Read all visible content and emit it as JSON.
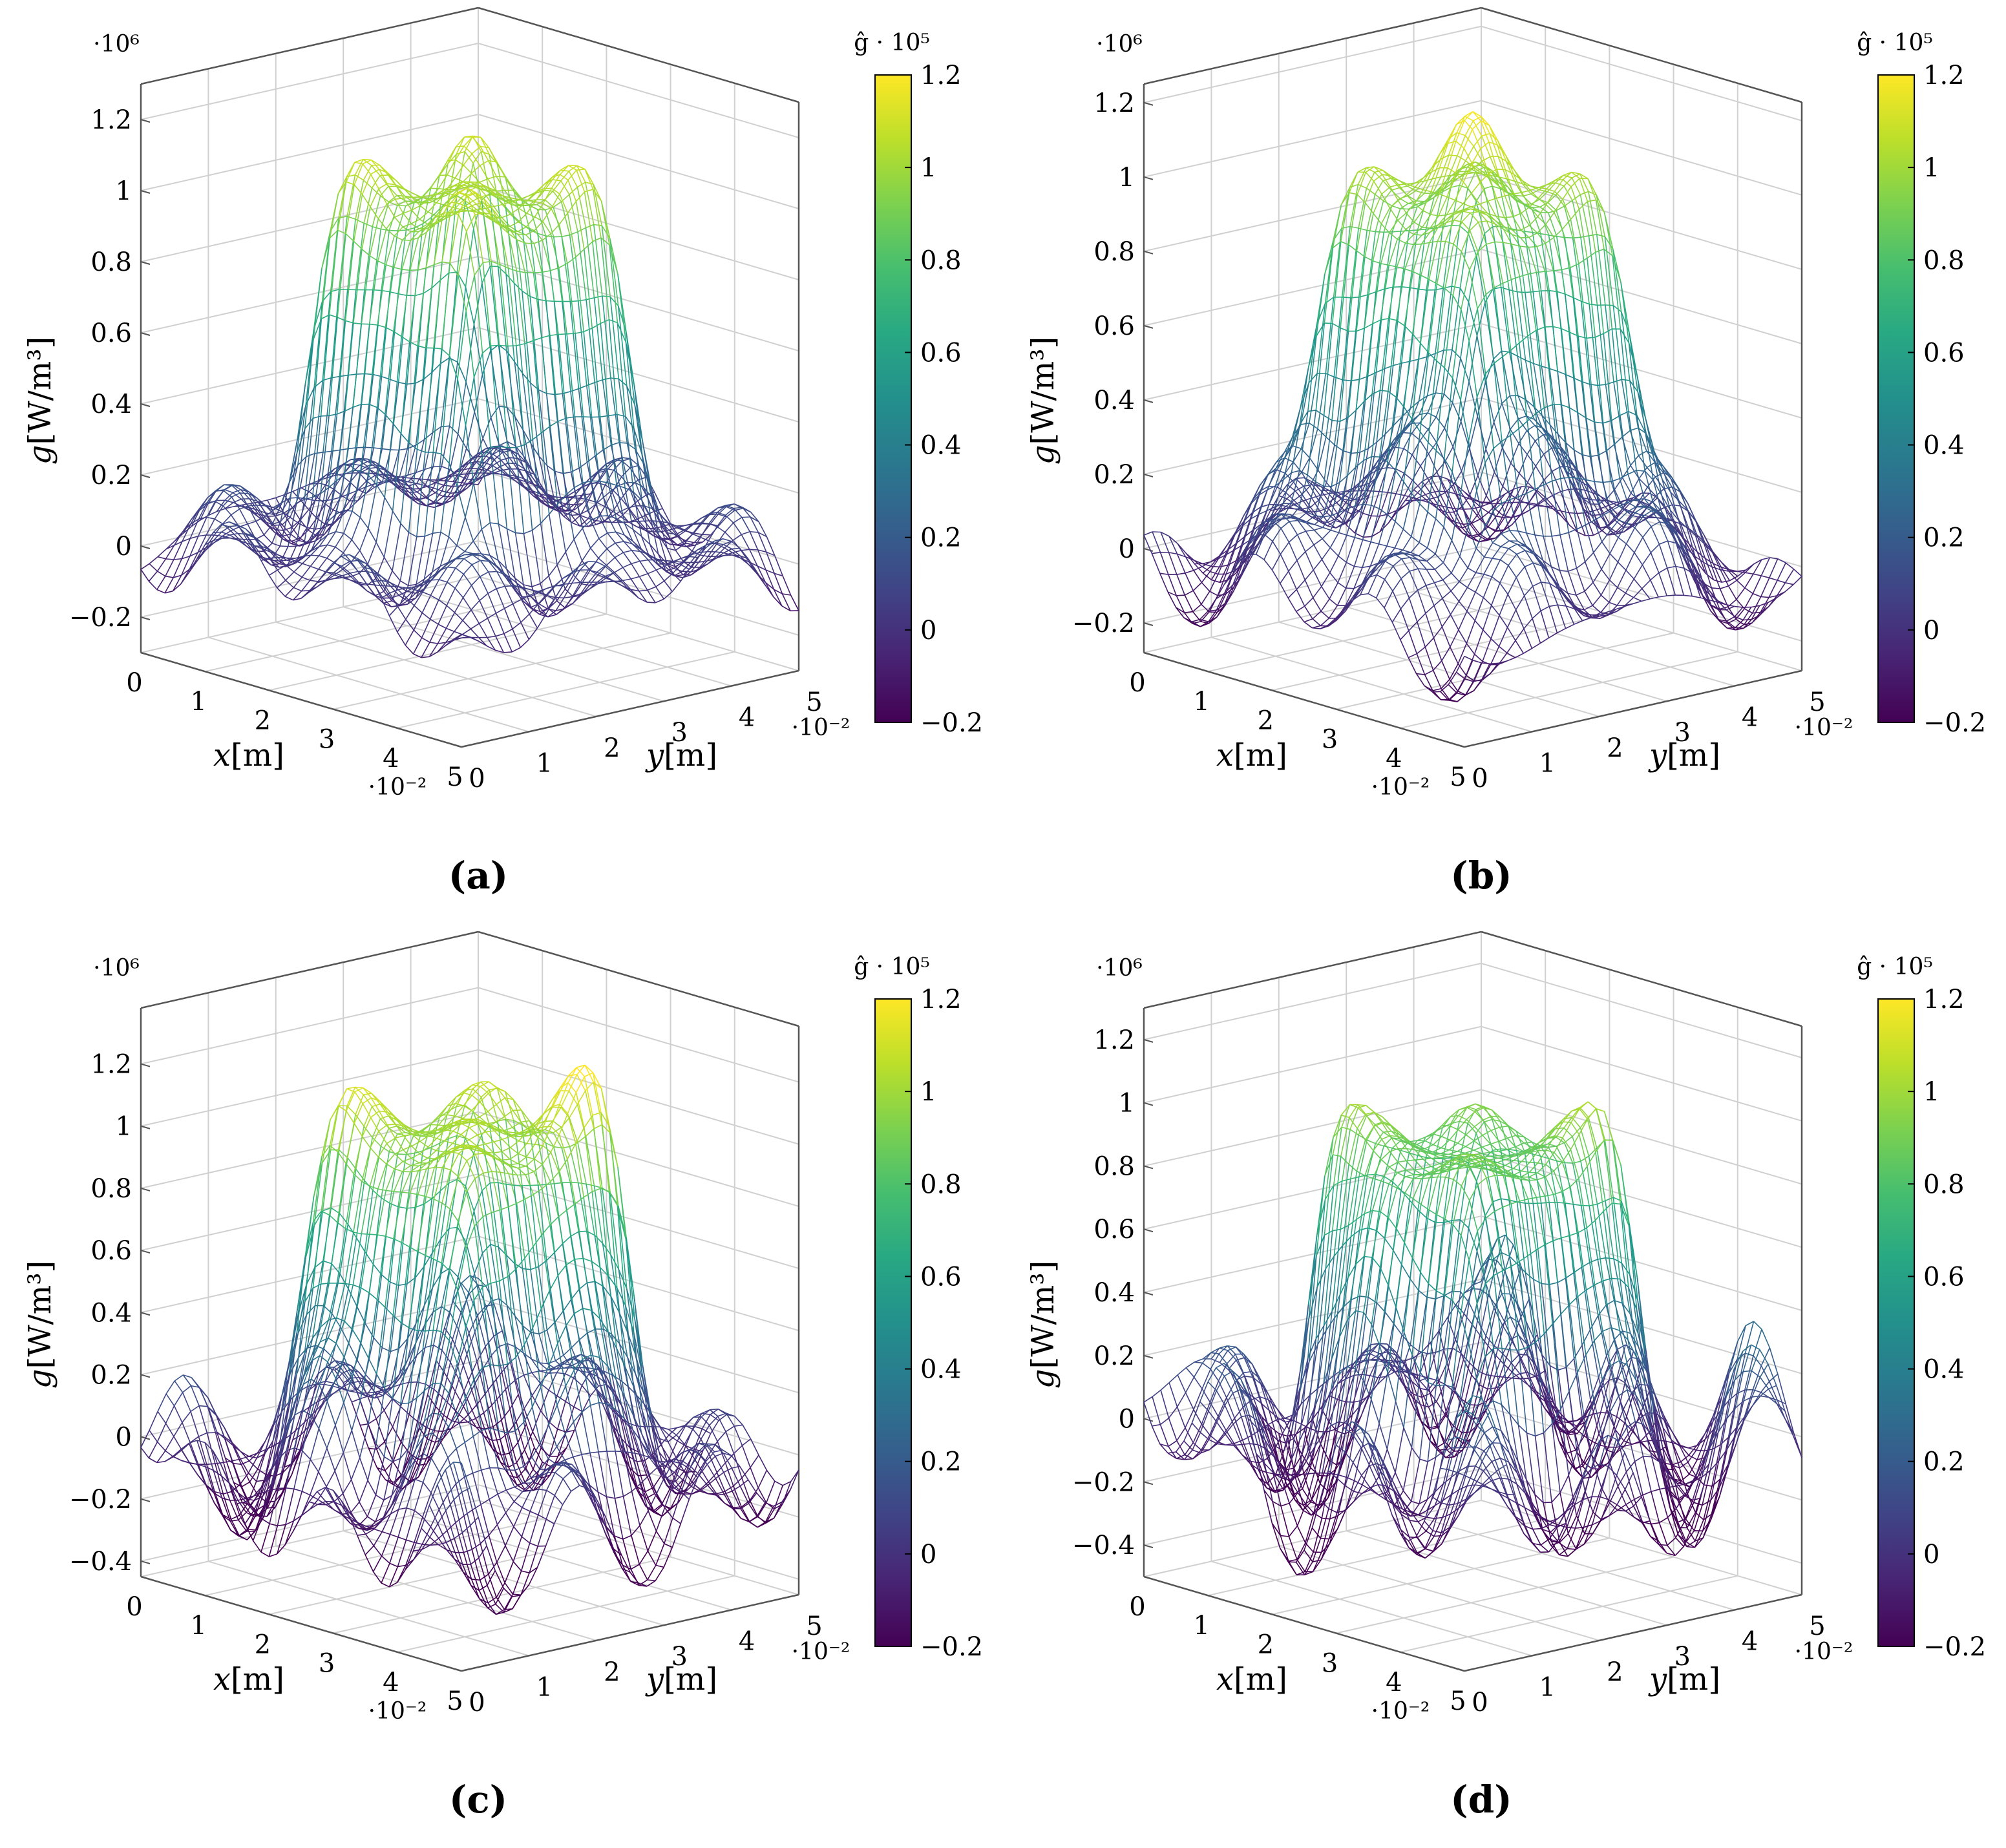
{
  "figure": {
    "panels": [
      {
        "id": "a",
        "caption": "(a)"
      },
      {
        "id": "b",
        "caption": "(b)"
      },
      {
        "id": "c",
        "caption": "(c)"
      },
      {
        "id": "d",
        "caption": "(d)"
      }
    ]
  },
  "chart_data": [
    {
      "type": "surface-mesh",
      "caption": "(a)",
      "xlabel_var": "x",
      "xlabel_unit": "[m]",
      "ylabel_var": "y",
      "ylabel_unit": "[m]",
      "zlabel_var": "g",
      "zlabel_unit": "[W/m³]",
      "x_ticks": [
        "0",
        "1",
        "2",
        "3",
        "4",
        "5"
      ],
      "x_scale": "·10⁻²",
      "y_ticks": [
        "0",
        "1",
        "2",
        "3",
        "4",
        "5"
      ],
      "y_scale": "·10⁻²",
      "z_ticks": [
        "−0.2",
        "0",
        "0.2",
        "0.4",
        "0.6",
        "0.8",
        "1",
        "1.2"
      ],
      "z_scale": "·10⁶",
      "zlim": [
        -0.3,
        1.3
      ],
      "colorbar": {
        "label": "ĝ · 10⁵",
        "ticks": [
          "−0.2",
          "0",
          "0.2",
          "0.4",
          "0.6",
          "0.8",
          "1",
          "1.2"
        ],
        "range": [
          -0.2,
          1.2
        ]
      },
      "surface": {
        "plateau_height": 1.0,
        "peaks": [
          [
            1.5,
            1.5,
            0.1
          ],
          [
            3.5,
            3.5,
            0.1
          ],
          [
            1.5,
            3.5,
            0.1
          ],
          [
            3.5,
            1.5,
            0.1
          ]
        ],
        "ring_amplitude": 0.1,
        "noise_seed": 1
      }
    },
    {
      "type": "surface-mesh",
      "caption": "(b)",
      "xlabel_var": "x",
      "xlabel_unit": "[m]",
      "ylabel_var": "y",
      "ylabel_unit": "[m]",
      "zlabel_var": "g",
      "zlabel_unit": "[W/m³]",
      "x_ticks": [
        "0",
        "1",
        "2",
        "3",
        "4",
        "5"
      ],
      "x_scale": "·10⁻²",
      "y_ticks": [
        "0",
        "1",
        "2",
        "3",
        "4",
        "5"
      ],
      "y_scale": "·10⁻²",
      "z_ticks": [
        "−0.2",
        "0",
        "0.2",
        "0.4",
        "0.6",
        "0.8",
        "1",
        "1.2"
      ],
      "z_scale": "·10⁶",
      "zlim": [
        -0.28,
        1.25
      ],
      "colorbar": {
        "label": "ĝ · 10⁵",
        "ticks": [
          "−0.2",
          "0",
          "0.2",
          "0.4",
          "0.6",
          "0.8",
          "1",
          "1.2"
        ],
        "range": [
          -0.2,
          1.2
        ]
      },
      "surface": {
        "plateau_height": 0.95,
        "peaks": [
          [
            2.5,
            2.5,
            0.2
          ],
          [
            1.5,
            1.5,
            0.08
          ],
          [
            3.5,
            3.5,
            0.08
          ]
        ],
        "ring_amplitude": 0.12,
        "noise_seed": 2
      }
    },
    {
      "type": "surface-mesh",
      "caption": "(c)",
      "xlabel_var": "x",
      "xlabel_unit": "[m]",
      "ylabel_var": "y",
      "ylabel_unit": "[m]",
      "zlabel_var": "g",
      "zlabel_unit": "[W/m³]",
      "x_ticks": [
        "0",
        "1",
        "2",
        "3",
        "4",
        "5"
      ],
      "x_scale": "·10⁻²",
      "y_ticks": [
        "0",
        "1",
        "2",
        "3",
        "4",
        "5"
      ],
      "y_scale": "·10⁻²",
      "z_ticks": [
        "−0.4",
        "−0.2",
        "0",
        "0.2",
        "0.4",
        "0.6",
        "0.8",
        "1",
        "1.2"
      ],
      "z_scale": "·10⁶",
      "zlim": [
        -0.45,
        1.38
      ],
      "colorbar": {
        "label": "ĝ · 10⁵",
        "ticks": [
          "−0.2",
          "0",
          "0.2",
          "0.4",
          "0.6",
          "0.8",
          "1",
          "1.2"
        ],
        "range": [
          -0.2,
          1.2
        ]
      },
      "surface": {
        "plateau_height": 1.0,
        "peaks": [
          [
            1.2,
            1.6,
            0.25
          ],
          [
            3.6,
            3.4,
            0.28
          ],
          [
            2.0,
            3.8,
            0.15
          ]
        ],
        "ring_amplitude": 0.22,
        "noise_seed": 3
      }
    },
    {
      "type": "surface-mesh",
      "caption": "(d)",
      "xlabel_var": "x",
      "xlabel_unit": "[m]",
      "ylabel_var": "y",
      "ylabel_unit": "[m]",
      "zlabel_var": "g",
      "zlabel_unit": "[W/m³]",
      "x_ticks": [
        "0",
        "1",
        "2",
        "3",
        "4",
        "5"
      ],
      "x_scale": "·10⁻²",
      "y_ticks": [
        "0",
        "1",
        "2",
        "3",
        "4",
        "5"
      ],
      "y_scale": "·10⁻²",
      "z_ticks": [
        "−0.4",
        "−0.2",
        "0",
        "0.2",
        "0.4",
        "0.6",
        "0.8",
        "1",
        "1.2"
      ],
      "z_scale": "·10⁶",
      "zlim": [
        -0.5,
        1.3
      ],
      "colorbar": {
        "label": "ĝ · 10⁵",
        "ticks": [
          "−0.2",
          "0",
          "0.2",
          "0.4",
          "0.6",
          "0.8",
          "1",
          "1.2"
        ],
        "range": [
          -0.2,
          1.2
        ]
      },
      "surface": {
        "plateau_height": 0.9,
        "peaks": [
          [
            1.2,
            1.4,
            0.25
          ],
          [
            3.7,
            3.6,
            0.25
          ],
          [
            2.5,
            2.5,
            -0.1
          ]
        ],
        "ring_amplitude": 0.25,
        "noise_seed": 4
      }
    }
  ]
}
